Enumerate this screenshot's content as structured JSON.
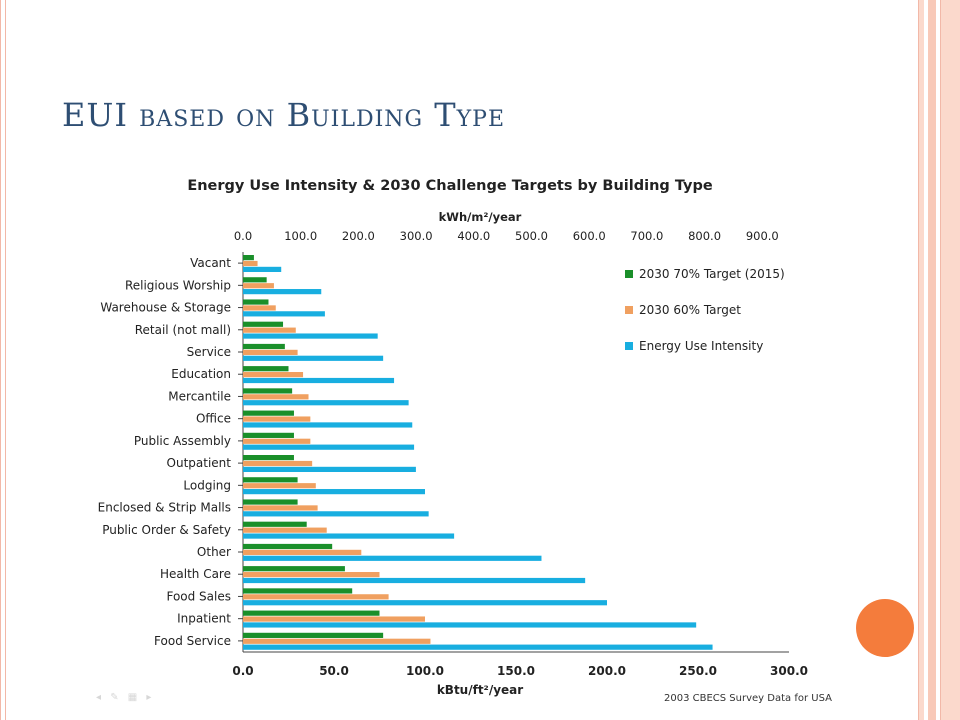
{
  "slide": {
    "title": "EUI based on Building Type",
    "source_note": "2003 CBECS Survey Data for USA",
    "colors": {
      "title": "#2e4e73",
      "accent_circle": "#f47c3c",
      "border": "#f2b8a8"
    }
  },
  "chart_data": {
    "type": "bar",
    "orientation": "horizontal",
    "title": "Energy Use Intensity & 2030 Challenge Targets by Building Type",
    "xlabel": "kBtu/ft²/year",
    "x2label": "kWh/m²/year",
    "xlim": [
      0,
      300
    ],
    "x2lim": [
      0,
      946.3
    ],
    "xticks": [
      "0.0",
      "50.0",
      "100.0",
      "150.0",
      "200.0",
      "250.0",
      "300.0"
    ],
    "x2ticks": [
      "0.0",
      "100.0",
      "200.0",
      "300.0",
      "400.0",
      "500.0",
      "600.0",
      "700.0",
      "800.0",
      "900.0"
    ],
    "x2tick_values": [
      0,
      100,
      200,
      300,
      400,
      500,
      600,
      700,
      800,
      900
    ],
    "grid": false,
    "legend_position": "top-right",
    "categories": [
      "Vacant",
      "Religious Worship",
      "Warehouse & Storage",
      "Retail (not mall)",
      "Service",
      "Education",
      "Mercantile",
      "Office",
      "Public Assembly",
      "Outpatient",
      "Lodging",
      "Enclosed & Strip Malls",
      "Public Order & Safety",
      "Other",
      "Health Care",
      "Food Sales",
      "Inpatient",
      "Food Service"
    ],
    "series": [
      {
        "name": "2030 70% Target (2015)",
        "color": "#1a8f2a",
        "values": [
          6,
          13,
          14,
          22,
          23,
          25,
          27,
          28,
          28,
          28,
          30,
          30,
          35,
          49,
          56,
          60,
          75,
          77
        ]
      },
      {
        "name": "2030 60% Target",
        "color": "#f0a060",
        "values": [
          8,
          17,
          18,
          29,
          30,
          33,
          36,
          37,
          37,
          38,
          40,
          41,
          46,
          65,
          75,
          80,
          100,
          103
        ]
      },
      {
        "name": "Energy Use Intensity",
        "color": "#18aee0",
        "values": [
          21,
          43,
          45,
          74,
          77,
          83,
          91,
          93,
          94,
          95,
          100,
          102,
          116,
          164,
          188,
          200,
          249,
          258
        ]
      }
    ]
  }
}
